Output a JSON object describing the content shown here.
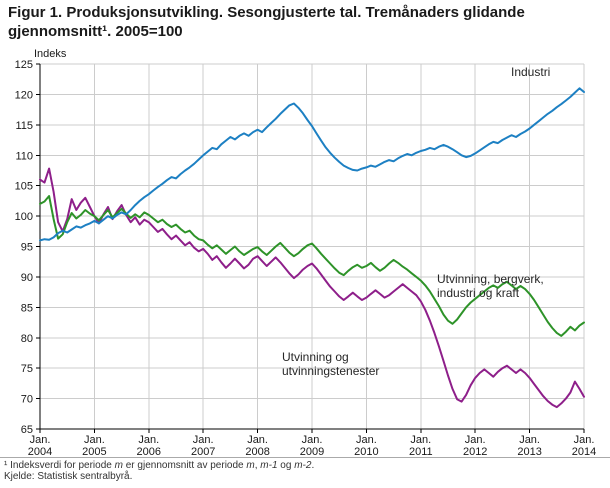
{
  "title": "Figur 1. Produksjonsutvikling. Sesongjusterte tal. Tremånaders glidande gjennomsnitt¹. 2005=100",
  "chart_data": {
    "type": "line",
    "title": "Figur 1. Produksjonsutvikling. Sesongjusterte tal. Tremånaders glidande gjennomsnitt¹. 2005=100",
    "ylabel": "Indeks",
    "ylim": [
      65,
      125
    ],
    "ytick_step": 5,
    "grid": true,
    "legend_position": "inline-annotations",
    "x_unit": "month",
    "x_tick_label": "Jan.",
    "x_tick_years": [
      2004,
      2005,
      2006,
      2007,
      2008,
      2009,
      2010,
      2011,
      2012,
      2013,
      2014
    ],
    "axis_color": "#000000",
    "grid_color": "#cccccc",
    "text_color": "#1a1a1a",
    "series": [
      {
        "id": "industri",
        "name": "Industri",
        "color": "#1d80c3",
        "values": [
          96.0,
          96.2,
          96.1,
          96.5,
          97.2,
          97.6,
          97.3,
          97.8,
          98.3,
          98.1,
          98.5,
          98.8,
          99.2,
          98.8,
          99.4,
          100.0,
          99.6,
          100.2,
          100.6,
          100.3,
          101.0,
          101.8,
          102.5,
          103.1,
          103.6,
          104.2,
          104.8,
          105.3,
          105.9,
          106.4,
          106.2,
          106.9,
          107.5,
          108.0,
          108.6,
          109.3,
          110.0,
          110.6,
          111.2,
          111.0,
          111.8,
          112.4,
          113.0,
          112.6,
          113.2,
          113.6,
          113.2,
          113.8,
          114.2,
          113.8,
          114.6,
          115.3,
          116.0,
          116.8,
          117.5,
          118.2,
          118.5,
          117.8,
          116.9,
          115.8,
          114.8,
          113.6,
          112.4,
          111.3,
          110.4,
          109.6,
          108.9,
          108.3,
          107.9,
          107.6,
          107.5,
          107.8,
          108.0,
          108.3,
          108.1,
          108.5,
          108.9,
          109.2,
          109.0,
          109.5,
          109.9,
          110.2,
          110.0,
          110.4,
          110.7,
          110.9,
          111.2,
          111.0,
          111.4,
          111.7,
          111.4,
          111.0,
          110.5,
          110.0,
          109.7,
          109.9,
          110.3,
          110.8,
          111.3,
          111.8,
          112.2,
          112.0,
          112.5,
          112.9,
          113.3,
          113.0,
          113.5,
          113.9,
          114.4,
          115.0,
          115.6,
          116.2,
          116.8,
          117.3,
          117.9,
          118.4,
          119.0,
          119.6,
          120.3,
          121.0,
          120.4
        ]
      },
      {
        "id": "utvinning-bergverk-industri-kraft",
        "name": "Utvinning, bergverk, industri og kraft",
        "color": "#2e9329",
        "values": [
          102.0,
          102.4,
          103.3,
          99.5,
          96.3,
          97.0,
          99.0,
          100.5,
          99.6,
          100.2,
          101.0,
          100.4,
          100.0,
          99.3,
          100.2,
          101.0,
          99.8,
          100.5,
          101.2,
          100.4,
          99.7,
          100.3,
          99.8,
          100.6,
          100.2,
          99.6,
          99.0,
          99.4,
          98.7,
          98.2,
          98.6,
          97.9,
          97.3,
          97.6,
          96.8,
          96.2,
          96.0,
          95.3,
          94.7,
          95.2,
          94.5,
          93.8,
          94.4,
          95.0,
          94.2,
          93.6,
          94.1,
          94.6,
          94.9,
          94.2,
          93.6,
          94.3,
          95.0,
          95.6,
          94.8,
          94.0,
          93.4,
          93.9,
          94.6,
          95.2,
          95.5,
          94.7,
          93.8,
          93.0,
          92.2,
          91.4,
          90.7,
          90.3,
          91.0,
          91.6,
          92.0,
          91.5,
          91.8,
          92.3,
          91.6,
          91.0,
          91.5,
          92.2,
          92.8,
          92.3,
          91.7,
          91.2,
          90.6,
          90.0,
          89.4,
          88.6,
          87.6,
          86.4,
          85.2,
          83.8,
          82.8,
          82.3,
          83.0,
          84.0,
          85.0,
          85.8,
          86.4,
          87.0,
          87.6,
          88.2,
          88.6,
          88.2,
          88.8,
          89.2,
          88.6,
          88.0,
          88.5,
          88.0,
          87.2,
          86.2,
          85.0,
          83.8,
          82.6,
          81.6,
          80.8,
          80.3,
          81.0,
          81.8,
          81.2,
          82.0,
          82.5
        ]
      },
      {
        "id": "utvinning-og-utvinningstenester",
        "name": "Utvinning og utvinningstenester",
        "color": "#8e1f8a",
        "values": [
          106.0,
          105.5,
          107.8,
          104.0,
          99.0,
          97.5,
          99.5,
          102.8,
          101.0,
          102.2,
          103.0,
          101.5,
          100.0,
          98.8,
          100.3,
          101.5,
          99.5,
          100.8,
          101.8,
          100.2,
          99.0,
          99.8,
          98.6,
          99.4,
          99.0,
          98.2,
          97.4,
          97.9,
          97.0,
          96.2,
          96.8,
          96.0,
          95.2,
          95.7,
          94.8,
          94.2,
          94.6,
          93.8,
          92.8,
          93.4,
          92.4,
          91.5,
          92.2,
          93.0,
          92.2,
          91.4,
          92.0,
          93.0,
          93.4,
          92.6,
          91.8,
          92.5,
          93.2,
          92.4,
          91.5,
          90.6,
          89.8,
          90.4,
          91.2,
          91.8,
          92.2,
          91.4,
          90.4,
          89.4,
          88.4,
          87.6,
          86.8,
          86.2,
          86.8,
          87.4,
          86.8,
          86.2,
          86.6,
          87.2,
          87.8,
          87.2,
          86.6,
          87.0,
          87.6,
          88.2,
          88.8,
          88.2,
          87.6,
          87.0,
          86.0,
          84.6,
          82.8,
          80.8,
          78.6,
          76.2,
          73.8,
          71.6,
          69.9,
          69.5,
          70.6,
          72.2,
          73.4,
          74.2,
          74.8,
          74.2,
          73.6,
          74.4,
          75.0,
          75.4,
          74.8,
          74.2,
          74.8,
          74.2,
          73.4,
          72.4,
          71.4,
          70.4,
          69.6,
          69.0,
          68.6,
          69.2,
          70.0,
          71.0,
          72.8,
          71.6,
          70.3
        ]
      }
    ]
  },
  "footnotes": {
    "note1_parts": [
      "¹ Indeksverdi for periode ",
      "m",
      " er gjennomsnitt av periode ",
      "m",
      ", ",
      "m-1",
      " og ",
      "m-2",
      "."
    ],
    "source": "Kjelde: Statistisk sentralbyrå."
  }
}
